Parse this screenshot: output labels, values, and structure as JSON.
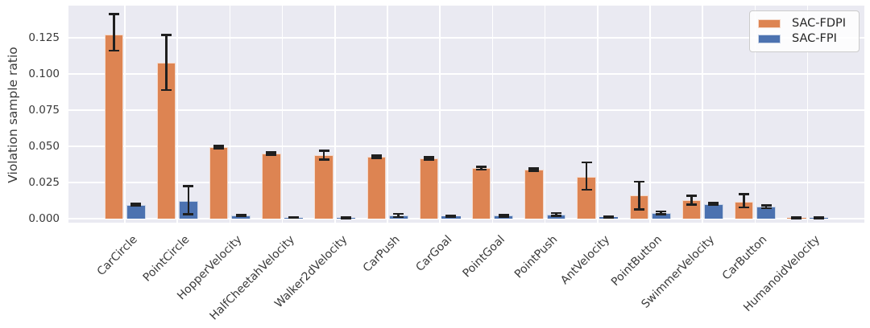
{
  "figure": {
    "background": "#ffffff",
    "plot_background": "#eaeaf2",
    "grid_color": "#ffffff",
    "errorbar_color": "#1f1f1f",
    "tick_text_color": "#3a3a3a"
  },
  "chart_data": {
    "type": "bar",
    "title": "",
    "xlabel": "",
    "ylabel": "Violation sample ratio",
    "ylim": [
      0,
      0.147
    ],
    "grid": true,
    "legend_position": "upper right",
    "yticks": [
      0.0,
      0.025,
      0.05,
      0.075,
      0.1,
      0.125
    ],
    "ytick_labels": [
      "0.000",
      "0.025",
      "0.050",
      "0.075",
      "0.100",
      "0.125"
    ],
    "categories": [
      "CarCircle",
      "PointCircle",
      "HopperVelocity",
      "HalfCheetahVelocity",
      "Walker2dVelocity",
      "CarPush",
      "CarGoal",
      "PointGoal",
      "PointPush",
      "AntVelocity",
      "PointButton",
      "SwimmerVelocity",
      "CarButton",
      "HumanoidVelocity"
    ],
    "series": [
      {
        "name": "SAC-FDPI",
        "color": "#dd8452",
        "values": [
          0.1275,
          0.108,
          0.0495,
          0.045,
          0.0438,
          0.0427,
          0.0417,
          0.0348,
          0.0338,
          0.029,
          0.016,
          0.013,
          0.0115,
          0.0006
        ],
        "err_lo": [
          0.116,
          0.089,
          0.0487,
          0.0443,
          0.0407,
          0.0419,
          0.0409,
          0.034,
          0.0329,
          0.02,
          0.0065,
          0.0097,
          0.0078,
          0.0002
        ],
        "err_hi": [
          0.1415,
          0.127,
          0.0503,
          0.0457,
          0.047,
          0.0435,
          0.0425,
          0.0357,
          0.0347,
          0.039,
          0.0255,
          0.0158,
          0.0171,
          0.001
        ]
      },
      {
        "name": "SAC-FPI",
        "color": "#4c72b0",
        "values": [
          0.0095,
          0.012,
          0.002,
          0.0008,
          0.0006,
          0.002,
          0.0015,
          0.002,
          0.0028,
          0.001,
          0.004,
          0.0101,
          0.0083,
          0.0005
        ],
        "err_lo": [
          0.0088,
          0.003,
          0.0016,
          0.0005,
          0.0004,
          0.0012,
          0.001,
          0.0013,
          0.002,
          0.0006,
          0.003,
          0.0095,
          0.0072,
          0.0002
        ],
        "err_hi": [
          0.0102,
          0.0225,
          0.0025,
          0.0011,
          0.0008,
          0.0033,
          0.002,
          0.0028,
          0.004,
          0.0015,
          0.005,
          0.0107,
          0.0092,
          0.0008
        ]
      }
    ]
  }
}
